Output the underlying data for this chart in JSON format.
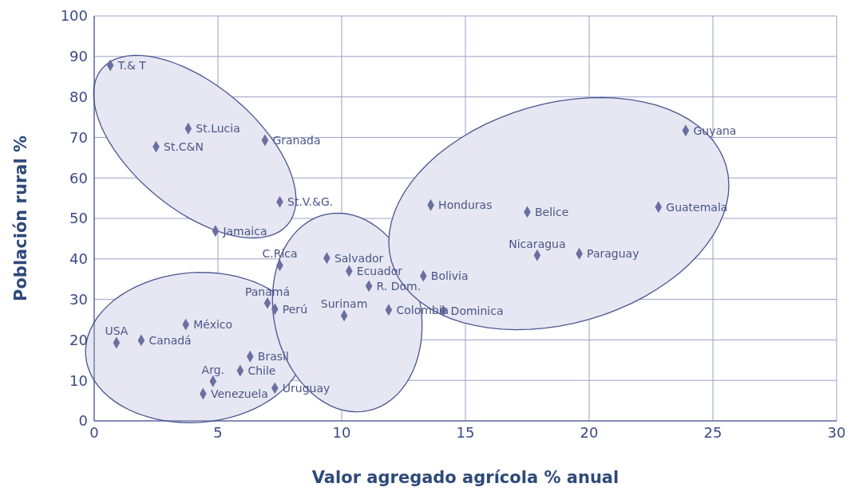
{
  "chart_data": {
    "type": "scatter",
    "xlabel": "Valor agregado agrícola % anual",
    "ylabel": "Población rural %",
    "xlim": [
      0,
      30
    ],
    "xticks": [
      0,
      5,
      10,
      15,
      20,
      25,
      30
    ],
    "ylim": [
      0,
      100
    ],
    "yticks": [
      0,
      10,
      20,
      30,
      40,
      50,
      60,
      70,
      80,
      90,
      100
    ],
    "grid": true,
    "legend": false,
    "marker": "diamond",
    "series": [
      {
        "name": "T.& T",
        "color": "#6b6fa0",
        "x": [
          0.65
        ],
        "values": [
          87.8
        ]
      },
      {
        "name": "St.Lucia",
        "color": "#6b6fa0",
        "x": [
          3.8
        ],
        "values": [
          72.2
        ]
      },
      {
        "name": "St.C&N",
        "color": "#6b6fa0",
        "x": [
          2.5
        ],
        "values": [
          67.7
        ]
      },
      {
        "name": "Granada",
        "color": "#6b6fa0",
        "x": [
          6.9
        ],
        "values": [
          69.3
        ]
      },
      {
        "name": "St.V.&G.",
        "color": "#6b6fa0",
        "x": [
          7.5
        ],
        "values": [
          54.1
        ]
      },
      {
        "name": "Jamaica",
        "color": "#6b6fa0",
        "x": [
          4.9
        ],
        "values": [
          46.9
        ]
      },
      {
        "name": "USA",
        "color": "#6b6fa0",
        "x": [
          0.9
        ],
        "values": [
          19.3
        ]
      },
      {
        "name": "Canadá",
        "color": "#6b6fa0",
        "x": [
          1.9
        ],
        "values": [
          19.9
        ]
      },
      {
        "name": "México",
        "color": "#6b6fa0",
        "x": [
          3.7
        ],
        "values": [
          23.8
        ]
      },
      {
        "name": "Panamá",
        "color": "#6b6fa0",
        "x": [
          7.0
        ],
        "values": [
          29.1
        ]
      },
      {
        "name": "Perú",
        "color": "#6b6fa0",
        "x": [
          7.3
        ],
        "values": [
          27.6
        ]
      },
      {
        "name": "Brasil",
        "color": "#6b6fa0",
        "x": [
          6.3
        ],
        "values": [
          15.9
        ]
      },
      {
        "name": "Chile",
        "color": "#6b6fa0",
        "x": [
          5.9
        ],
        "values": [
          12.4
        ]
      },
      {
        "name": "Arg.",
        "color": "#6b6fa0",
        "x": [
          4.8
        ],
        "values": [
          9.8
        ]
      },
      {
        "name": "Venezuela",
        "color": "#6b6fa0",
        "x": [
          4.4
        ],
        "values": [
          6.7
        ]
      },
      {
        "name": "Uruguay",
        "color": "#6b6fa0",
        "x": [
          7.3
        ],
        "values": [
          8.1
        ]
      },
      {
        "name": "C.Rica",
        "color": "#6b6fa0",
        "x": [
          7.5
        ],
        "values": [
          38.4
        ]
      },
      {
        "name": "Salvador",
        "color": "#6b6fa0",
        "x": [
          9.4
        ],
        "values": [
          40.2
        ]
      },
      {
        "name": "Ecuador",
        "color": "#6b6fa0",
        "x": [
          10.3
        ],
        "values": [
          37.0
        ]
      },
      {
        "name": "R. Dom.",
        "color": "#6b6fa0",
        "x": [
          11.1
        ],
        "values": [
          33.3
        ]
      },
      {
        "name": "Surinam",
        "color": "#6b6fa0",
        "x": [
          10.1
        ],
        "values": [
          26.0
        ]
      },
      {
        "name": "Colombia",
        "color": "#6b6fa0",
        "x": [
          11.9
        ],
        "values": [
          27.4
        ]
      },
      {
        "name": "Dominica",
        "color": "#6b6fa0",
        "x": [
          14.1
        ],
        "values": [
          27.2
        ]
      },
      {
        "name": "Bolivia",
        "color": "#6b6fa0",
        "x": [
          13.3
        ],
        "values": [
          35.8
        ]
      },
      {
        "name": "Honduras",
        "color": "#6b6fa0",
        "x": [
          13.6
        ],
        "values": [
          53.3
        ]
      },
      {
        "name": "Belice",
        "color": "#6b6fa0",
        "x": [
          17.5
        ],
        "values": [
          51.6
        ]
      },
      {
        "name": "Guyana",
        "color": "#6b6fa0",
        "x": [
          23.9
        ],
        "values": [
          71.7
        ]
      },
      {
        "name": "Guatemala",
        "color": "#6b6fa0",
        "x": [
          22.8
        ],
        "values": [
          52.8
        ]
      },
      {
        "name": "Nicaragua",
        "color": "#6b6fa0",
        "x": [
          17.9
        ],
        "values": [
          40.9
        ]
      },
      {
        "name": "Paraguay",
        "color": "#6b6fa0",
        "x": [
          19.6
        ],
        "values": [
          41.3
        ]
      }
    ]
  }
}
